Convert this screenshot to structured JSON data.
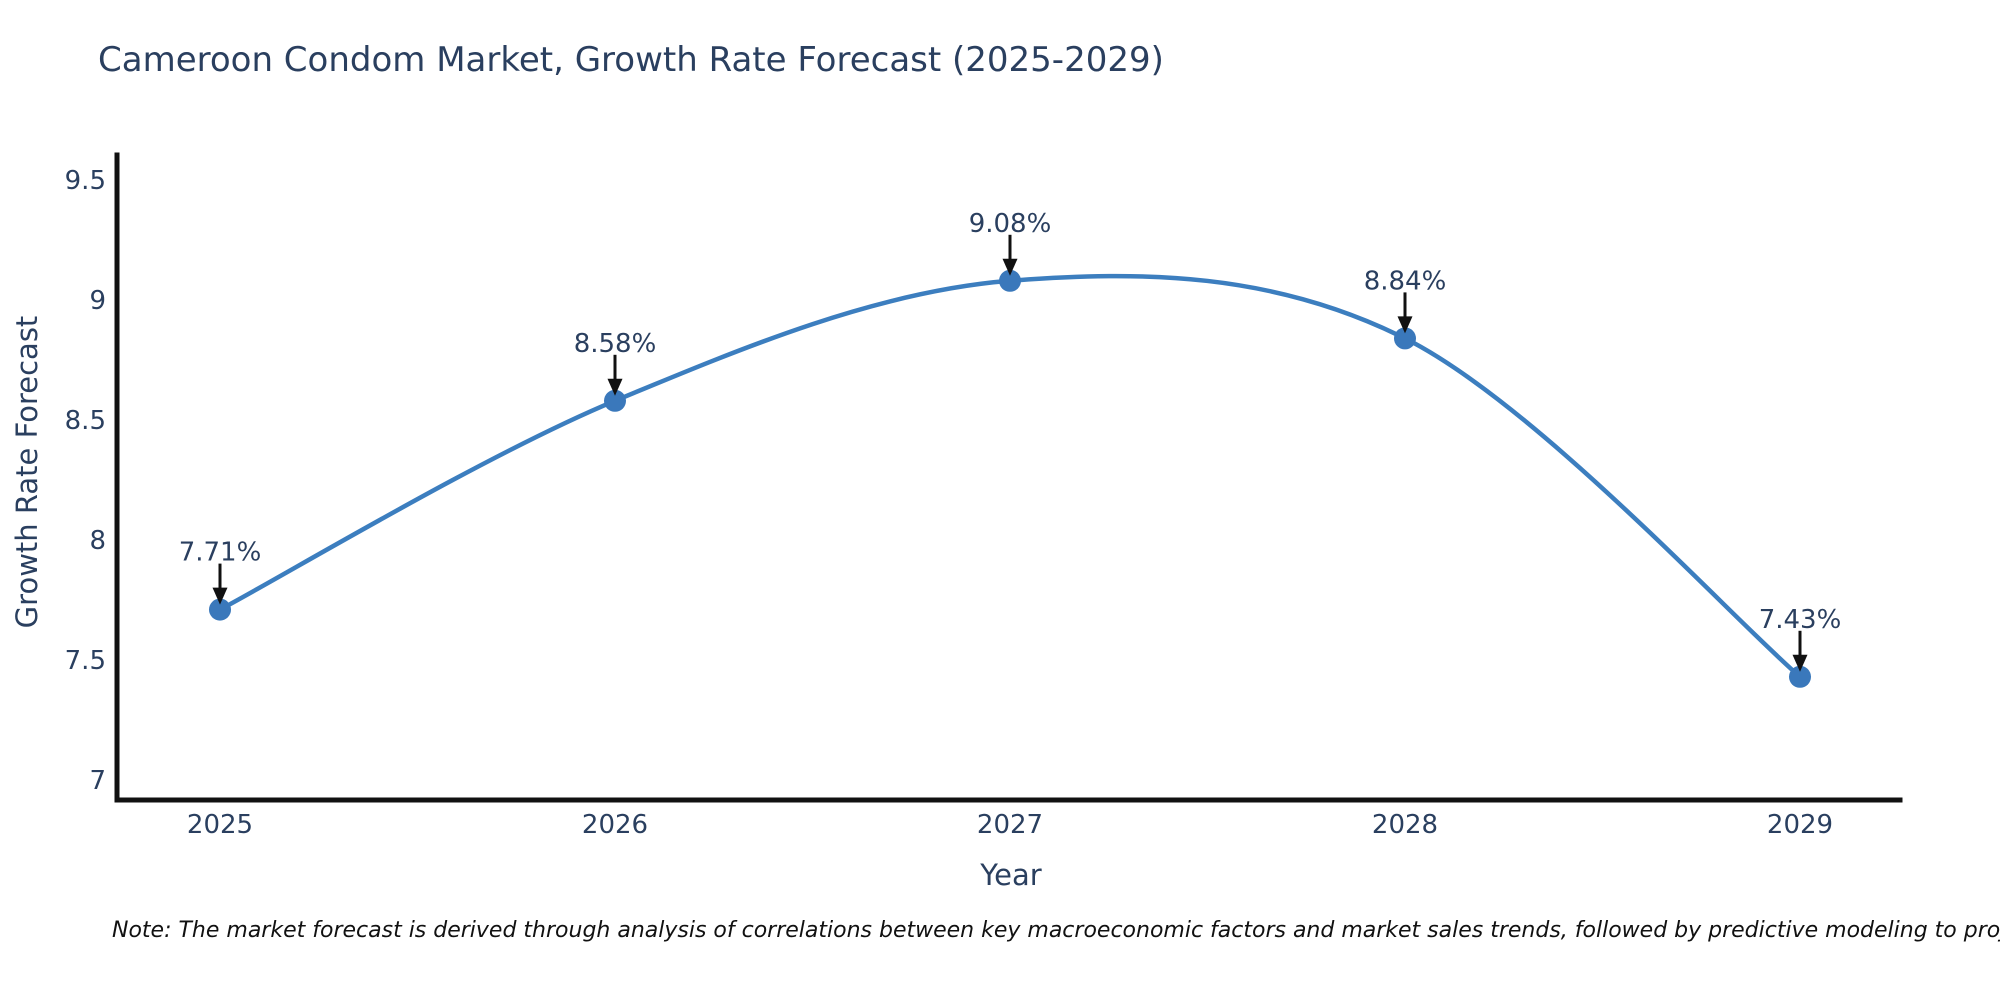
{
  "note": "Note: The market forecast is derived through analysis of correlations between key macroeconomic factors and market sales trends, followed by predictive modeling to project future sales",
  "chart_data": {
    "type": "line",
    "title": "Cameroon Condom Market, Growth Rate Forecast (2025-2029)",
    "xlabel": "Year",
    "ylabel": "Growth Rate Forecast",
    "categories": [
      "2025",
      "2026",
      "2027",
      "2028",
      "2029"
    ],
    "series": [
      {
        "name": "Growth Rate Forecast",
        "values": [
          7.71,
          8.58,
          9.08,
          8.84,
          7.43
        ]
      }
    ],
    "point_labels": [
      "7.71%",
      "8.58%",
      "9.08%",
      "8.84%",
      "7.43%"
    ],
    "yticks": [
      7,
      7.5,
      8,
      8.5,
      9,
      9.5
    ],
    "ytick_labels": [
      "7",
      "7.5",
      "8",
      "8.5",
      "9",
      "9.5"
    ],
    "ylim": [
      6.9,
      9.6
    ],
    "grid": false,
    "legend": "none",
    "line_shape": "spline",
    "annotations": "value labels with downward arrows above each point",
    "colors": {
      "line": "#3c7ebf",
      "marker": "#3a78bb",
      "axis": "#111111",
      "tick_text": "#2a3f5f",
      "annotation_text": "#2a3f5f",
      "arrow": "#111111",
      "title_text": "#2a3f5f",
      "background": "#ffffff"
    }
  }
}
